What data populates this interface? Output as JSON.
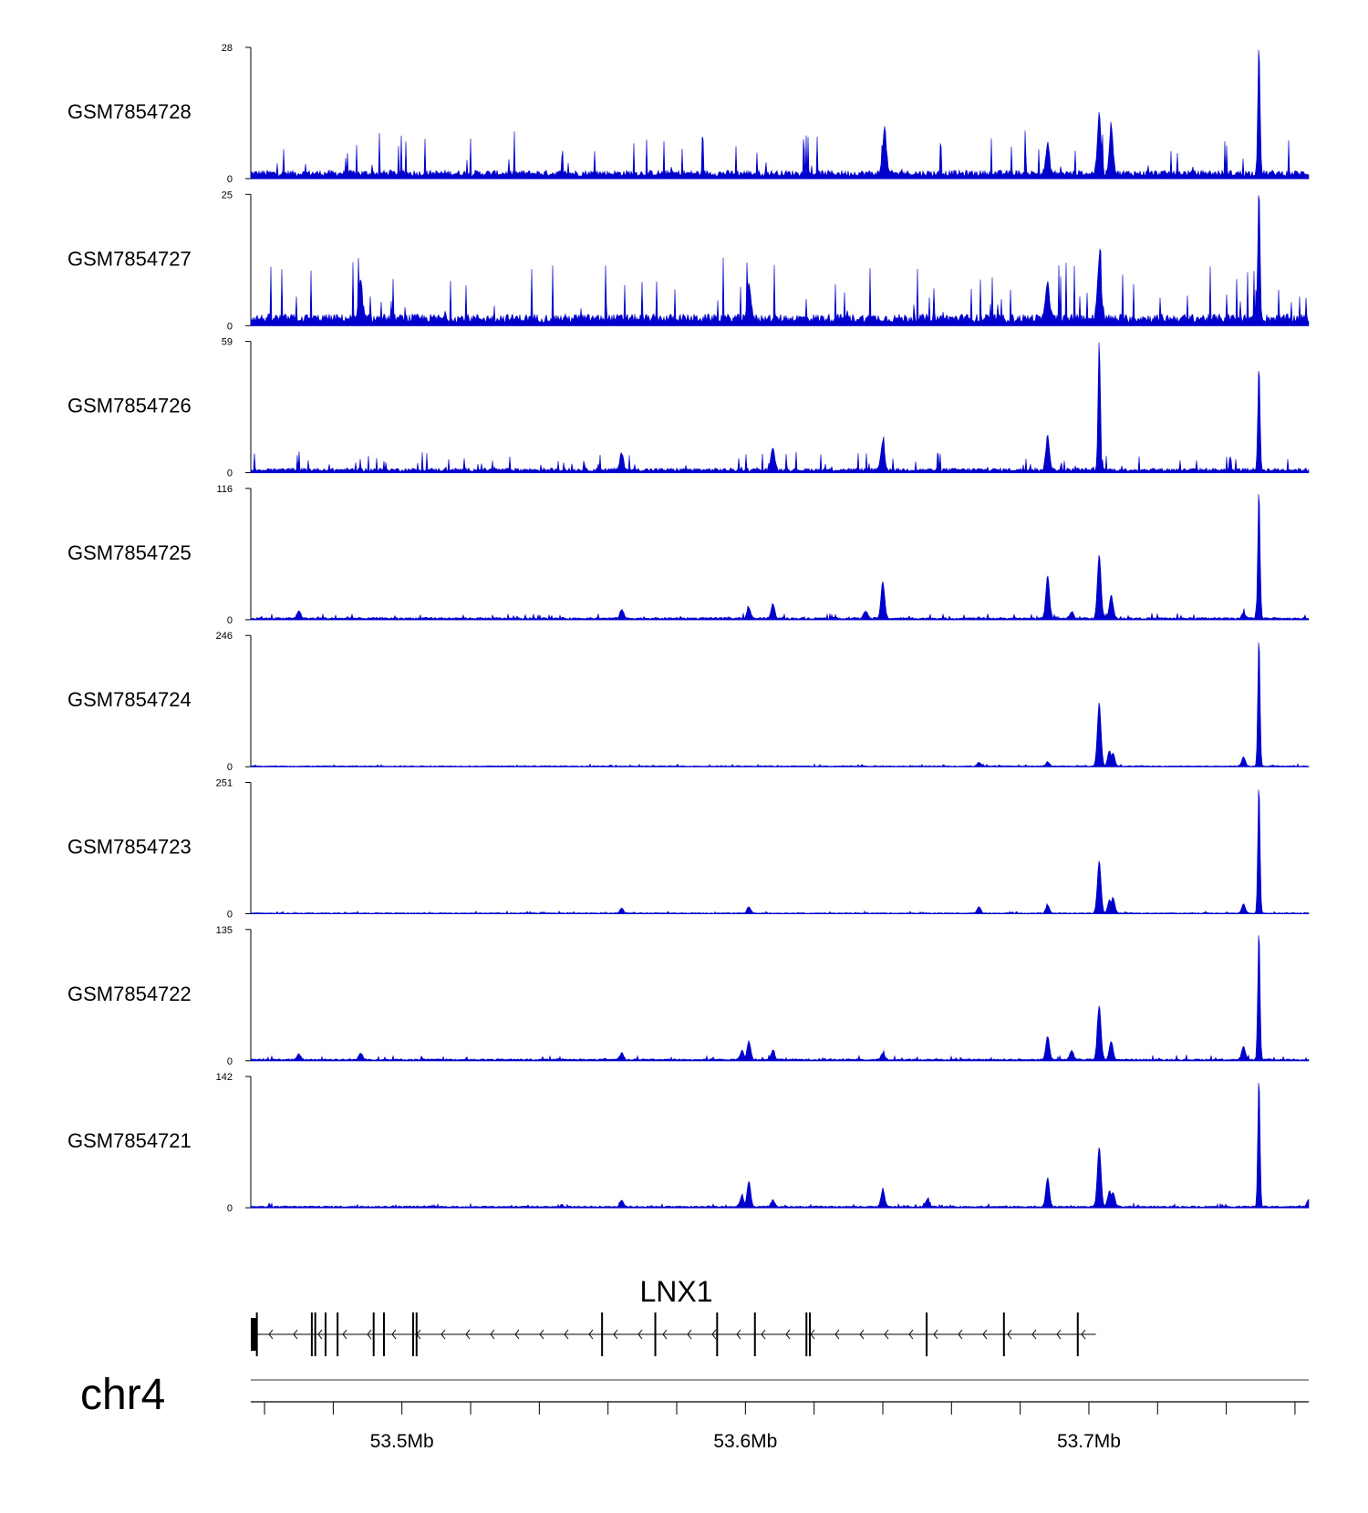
{
  "chart_data": {
    "type": "area",
    "tracks": [
      {
        "name": "GSM7854728",
        "ymax": "28",
        "ymin": "0",
        "max_value": 28,
        "baseline": 1.3,
        "noise": 4.0,
        "peaks": [
          [
            53.6405,
            0.35
          ],
          [
            53.688,
            0.22
          ],
          [
            53.703,
            0.45
          ],
          [
            53.7065,
            0.38
          ],
          [
            53.7495,
            1.0
          ]
        ]
      },
      {
        "name": "GSM7854727",
        "ymax": "25",
        "ymin": "0",
        "max_value": 25,
        "baseline": 1.6,
        "noise": 5.0,
        "peaks": [
          [
            53.488,
            0.28
          ],
          [
            53.601,
            0.28
          ],
          [
            53.688,
            0.3
          ],
          [
            53.703,
            0.45
          ],
          [
            53.7495,
            1.0
          ]
        ]
      },
      {
        "name": "GSM7854726",
        "ymax": "59",
        "ymin": "0",
        "max_value": 59,
        "baseline": 1.5,
        "noise": 3.5,
        "peaks": [
          [
            53.564,
            0.13
          ],
          [
            53.608,
            0.18
          ],
          [
            53.64,
            0.22
          ],
          [
            53.688,
            0.26
          ],
          [
            53.703,
            1.0
          ],
          [
            53.7495,
            0.8
          ]
        ]
      },
      {
        "name": "GSM7854725",
        "ymax": "116",
        "ymin": "0",
        "max_value": 116,
        "baseline": 1.5,
        "noise": 2.0,
        "peaks": [
          [
            53.47,
            0.06
          ],
          [
            53.564,
            0.07
          ],
          [
            53.601,
            0.08
          ],
          [
            53.608,
            0.11
          ],
          [
            53.635,
            0.06
          ],
          [
            53.64,
            0.28
          ],
          [
            53.688,
            0.33
          ],
          [
            53.695,
            0.05
          ],
          [
            53.703,
            0.49
          ],
          [
            53.7065,
            0.18
          ],
          [
            53.745,
            0.04
          ],
          [
            53.7495,
            1.0
          ]
        ]
      },
      {
        "name": "GSM7854724",
        "ymax": "246",
        "ymin": "0",
        "max_value": 246,
        "baseline": 1.5,
        "noise": 1.5,
        "peaks": [
          [
            53.668,
            0.03
          ],
          [
            53.688,
            0.03
          ],
          [
            53.703,
            0.48
          ],
          [
            53.706,
            0.12
          ],
          [
            53.707,
            0.1
          ],
          [
            53.745,
            0.07
          ],
          [
            53.7495,
            1.0
          ]
        ]
      },
      {
        "name": "GSM7854723",
        "ymax": "251",
        "ymin": "0",
        "max_value": 251,
        "baseline": 1.5,
        "noise": 1.5,
        "peaks": [
          [
            53.564,
            0.04
          ],
          [
            53.601,
            0.05
          ],
          [
            53.668,
            0.05
          ],
          [
            53.688,
            0.06
          ],
          [
            53.703,
            0.4
          ],
          [
            53.706,
            0.1
          ],
          [
            53.707,
            0.12
          ],
          [
            53.745,
            0.07
          ],
          [
            53.7495,
            1.0
          ]
        ]
      },
      {
        "name": "GSM7854722",
        "ymax": "135",
        "ymin": "0",
        "max_value": 135,
        "baseline": 1.5,
        "noise": 2.0,
        "peaks": [
          [
            53.47,
            0.04
          ],
          [
            53.488,
            0.05
          ],
          [
            53.564,
            0.05
          ],
          [
            53.599,
            0.07
          ],
          [
            53.601,
            0.14
          ],
          [
            53.608,
            0.07
          ],
          [
            53.64,
            0.05
          ],
          [
            53.688,
            0.18
          ],
          [
            53.695,
            0.07
          ],
          [
            53.703,
            0.42
          ],
          [
            53.7065,
            0.14
          ],
          [
            53.745,
            0.1
          ],
          [
            53.7495,
            1.0
          ]
        ]
      },
      {
        "name": "GSM7854721",
        "ymax": "142",
        "ymin": "0",
        "max_value": 142,
        "baseline": 1.5,
        "noise": 1.5,
        "peaks": [
          [
            53.564,
            0.05
          ],
          [
            53.599,
            0.08
          ],
          [
            53.601,
            0.19
          ],
          [
            53.608,
            0.05
          ],
          [
            53.64,
            0.13
          ],
          [
            53.653,
            0.06
          ],
          [
            53.688,
            0.22
          ],
          [
            53.703,
            0.46
          ],
          [
            53.706,
            0.12
          ],
          [
            53.707,
            0.11
          ],
          [
            53.7495,
            1.0
          ],
          [
            53.764,
            0.06
          ]
        ]
      }
    ],
    "gene": {
      "name": "LNX1",
      "start": 53.456,
      "end": 53.702,
      "strand": "-",
      "exons": [
        53.4575,
        53.4735,
        53.4745,
        53.4775,
        53.481,
        53.4915,
        53.4945,
        53.503,
        53.504,
        53.558,
        53.5735,
        53.5915,
        53.6025,
        53.6175,
        53.6185,
        53.6525,
        53.675,
        53.6965
      ]
    },
    "axis": {
      "chromosome": "chr4",
      "xlim": [
        53.456,
        53.764
      ],
      "tick_labels": [
        "53.5Mb",
        "53.6Mb",
        "53.7Mb"
      ],
      "tick_values": [
        53.5,
        53.6,
        53.7
      ],
      "minor_ticks": [
        53.46,
        53.48,
        53.5,
        53.52,
        53.54,
        53.56,
        53.58,
        53.6,
        53.62,
        53.64,
        53.66,
        53.68,
        53.7,
        53.72,
        53.74,
        53.76
      ]
    },
    "colors": {
      "signal": "#0000cc",
      "axis": "#000000",
      "gene": "#000000",
      "ideogram": "#777777"
    },
    "grid": false,
    "legend": "none"
  }
}
